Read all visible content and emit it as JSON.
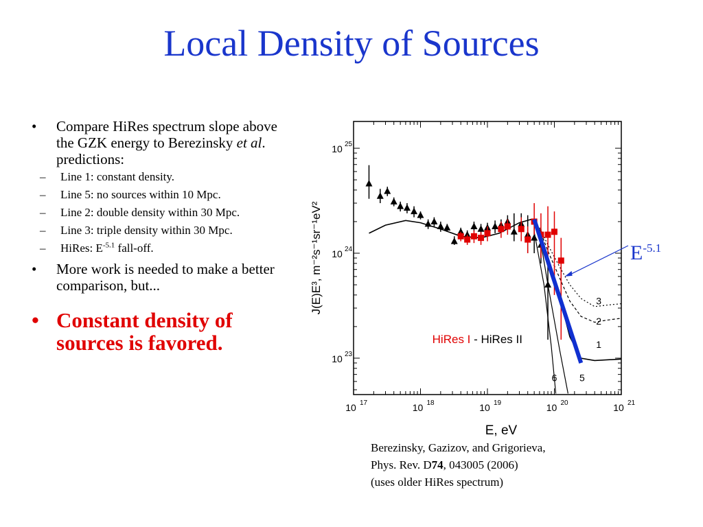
{
  "slide": {
    "title": "Local Density of Sources"
  },
  "bullets": {
    "b1_text": "Compare HiRes spectrum slope above the GZK energy to Berezinsky ",
    "b1_italic": "et al",
    "b1_tail": ". predictions:",
    "subs": [
      "Line 1:  constant density.",
      "Line 5:  no sources within 10 Mpc.",
      "Line 2:  double density within 30 Mpc.",
      "Line 3:  triple density   within 30 Mpc."
    ],
    "sub5_prefix": "HiRes:  E",
    "sub5_exp": "-5.1",
    "sub5_suffix": " fall-off.",
    "b2": "More work is needed to make a better comparison,  but...",
    "b3": "Constant density of sources is favored.",
    "bullet_glyph": "•",
    "dash_glyph": "–"
  },
  "annotation": {
    "base": "E",
    "exp": "-5.1"
  },
  "caption": {
    "line1": "Berezinsky, Gazizov, and Grigorieva,",
    "line2_pre": "Phys. Rev. D",
    "line2_bold": "74",
    "line2_post": ", 043005 (2006)",
    "line3": "(uses older HiRes spectrum)"
  },
  "chart_data": {
    "type": "scatter",
    "xlabel": "E, eV",
    "ylabel": "J(E)E³, m⁻²s⁻¹sr⁻¹eV²",
    "xscale": "log",
    "yscale": "log",
    "xlim": [
      1e+17,
      1e+21
    ],
    "ylim": [
      4.5e+22,
      1.8e+25
    ],
    "x_ticks": [
      {
        "base": "10",
        "exp": "17",
        "value": 1e+17
      },
      {
        "base": "10",
        "exp": "18",
        "value": 1e+18
      },
      {
        "base": "10",
        "exp": "19",
        "value": 1e+19
      },
      {
        "base": "10",
        "exp": "20",
        "value": 1e+20
      },
      {
        "base": "10",
        "exp": "21",
        "value": 1e+21
      }
    ],
    "y_ticks": [
      {
        "base": "10",
        "exp": "25",
        "value": 1e+25
      },
      {
        "base": "10",
        "exp": "24",
        "value": 1e+24
      },
      {
        "base": "10",
        "exp": "23",
        "value": 1e+23
      }
    ],
    "legend": {
      "series1": "HiRes I",
      "separator": " - ",
      "series2": "HiRes II",
      "placement": "lower-center"
    },
    "colors": {
      "hires1": "#e00000",
      "hires2": "#000000",
      "e51_line": "#1030d0",
      "annotation": "#1a36cc"
    },
    "series": [
      {
        "name": "HiRes II",
        "points": [
          {
            "x": 1.7e+17,
            "y": 4.6e+24,
            "lo": 3.3e+24,
            "hi": 6.9e+24
          },
          {
            "x": 2.5e+17,
            "y": 3.5e+24,
            "lo": 3e+24,
            "hi": 4.1e+24
          },
          {
            "x": 3.2e+17,
            "y": 3.9e+24,
            "lo": 3.5e+24,
            "hi": 4.3e+24
          },
          {
            "x": 4e+17,
            "y": 3.1e+24,
            "lo": 2.8e+24,
            "hi": 3.4e+24
          },
          {
            "x": 5e+17,
            "y": 2.8e+24,
            "lo": 2.5e+24,
            "hi": 3.1e+24
          },
          {
            "x": 6.3e+17,
            "y": 2.7e+24,
            "lo": 2.4e+24,
            "hi": 3e+24
          },
          {
            "x": 8e+17,
            "y": 2.5e+24,
            "lo": 2.2e+24,
            "hi": 2.8e+24
          },
          {
            "x": 1e+18,
            "y": 2.3e+24,
            "lo": 2.1e+24,
            "hi": 2.5e+24
          },
          {
            "x": 1.3e+18,
            "y": 1.9e+24,
            "lo": 1.7e+24,
            "hi": 2.1e+24
          },
          {
            "x": 1.6e+18,
            "y": 2e+24,
            "lo": 1.8e+24,
            "hi": 2.2e+24
          },
          {
            "x": 2e+18,
            "y": 1.8e+24,
            "lo": 1.6e+24,
            "hi": 2e+24
          },
          {
            "x": 2.5e+18,
            "y": 1.75e+24,
            "lo": 1.6e+24,
            "hi": 1.9e+24
          },
          {
            "x": 3.2e+18,
            "y": 1.3e+24,
            "lo": 1.2e+24,
            "hi": 1.45e+24
          },
          {
            "x": 4e+18,
            "y": 1.6e+24,
            "lo": 1.45e+24,
            "hi": 1.75e+24
          },
          {
            "x": 5e+18,
            "y": 1.5e+24,
            "lo": 1.35e+24,
            "hi": 1.65e+24
          },
          {
            "x": 6.3e+18,
            "y": 1.8e+24,
            "lo": 1.6e+24,
            "hi": 2e+24
          },
          {
            "x": 8e+18,
            "y": 1.7e+24,
            "lo": 1.5e+24,
            "hi": 1.9e+24
          },
          {
            "x": 1e+19,
            "y": 1.75e+24,
            "lo": 1.55e+24,
            "hi": 1.95e+24
          },
          {
            "x": 1.3e+19,
            "y": 1.8e+24,
            "lo": 1.55e+24,
            "hi": 2.05e+24
          },
          {
            "x": 1.6e+19,
            "y": 1.85e+24,
            "lo": 1.6e+24,
            "hi": 2.1e+24
          },
          {
            "x": 2e+19,
            "y": 2e+24,
            "lo": 1.7e+24,
            "hi": 2.3e+24
          },
          {
            "x": 2.5e+19,
            "y": 1.6e+24,
            "lo": 1.3e+24,
            "hi": 2.4e+24
          },
          {
            "x": 3.2e+19,
            "y": 1.9e+24,
            "lo": 1.5e+24,
            "hi": 2.4e+24
          },
          {
            "x": 4e+19,
            "y": 1.5e+24,
            "lo": 1e+24,
            "hi": 2.3e+24
          },
          {
            "x": 5e+19,
            "y": 1.4e+24,
            "lo": 1e+24,
            "hi": 2e+24
          },
          {
            "x": 6.3e+19,
            "y": 1.2e+24,
            "lo": 8e+23,
            "hi": 1.7e+24
          },
          {
            "x": 8e+19,
            "y": 5e+23,
            "lo": 1.5e+23,
            "hi": 9e+23
          }
        ]
      },
      {
        "name": "HiRes I",
        "points": [
          {
            "x": 4e+18,
            "y": 1.45e+24,
            "lo": 1.3e+24,
            "hi": 1.6e+24
          },
          {
            "x": 5e+18,
            "y": 1.35e+24,
            "lo": 1.2e+24,
            "hi": 1.5e+24
          },
          {
            "x": 6.3e+18,
            "y": 1.45e+24,
            "lo": 1.25e+24,
            "hi": 1.65e+24
          },
          {
            "x": 8e+18,
            "y": 1.4e+24,
            "lo": 1.2e+24,
            "hi": 1.6e+24
          },
          {
            "x": 1e+19,
            "y": 1.55e+24,
            "lo": 1.3e+24,
            "hi": 1.8e+24
          },
          {
            "x": 1.6e+19,
            "y": 1.7e+24,
            "lo": 1.4e+24,
            "hi": 2e+24
          },
          {
            "x": 2e+19,
            "y": 1.8e+24,
            "lo": 1.5e+24,
            "hi": 2.1e+24
          },
          {
            "x": 3.2e+19,
            "y": 1.7e+24,
            "lo": 1.3e+24,
            "hi": 2.2e+24
          },
          {
            "x": 4e+19,
            "y": 1.35e+24,
            "lo": 1e+24,
            "hi": 1.8e+24
          },
          {
            "x": 5e+19,
            "y": 2e+24,
            "lo": 1.5e+24,
            "hi": 3e+24
          },
          {
            "x": 6.3e+19,
            "y": 1.5e+24,
            "lo": 9e+23,
            "hi": 2.4e+24
          },
          {
            "x": 8e+19,
            "y": 1.5e+24,
            "lo": 8e+23,
            "hi": 2.8e+24
          },
          {
            "x": 1e+20,
            "y": 1.6e+24,
            "lo": 4e+23,
            "hi": 2.5e+24
          },
          {
            "x": 1.26e+20,
            "y": 8.5e+23,
            "lo": 1.5e+23,
            "hi": 1.4e+24
          }
        ]
      }
    ],
    "model_curves": [
      {
        "label": "1",
        "points": [
          [
            1.7e+17,
            1.55e+24
          ],
          [
            3e+17,
            1.85e+24
          ],
          [
            6e+17,
            2.05e+24
          ],
          [
            1e+18,
            1.95e+24
          ],
          [
            2e+18,
            1.7e+24
          ],
          [
            4e+18,
            1.45e+24
          ],
          [
            8e+18,
            1.4e+24
          ],
          [
            1.5e+19,
            1.55e+24
          ],
          [
            3e+19,
            1.95e+24
          ],
          [
            4.5e+19,
            2.1e+24
          ],
          [
            6e+19,
            1.6e+24
          ],
          [
            8e+19,
            8.5e+23
          ],
          [
            1.2e+20,
            3.8e+23
          ],
          [
            1.7e+20,
            1.6e+23
          ],
          [
            2.5e+20,
            1e+23
          ],
          [
            4e+20,
            9.5e+22
          ],
          [
            1e+21,
            9.8e+22
          ]
        ]
      },
      {
        "label": "2",
        "points": [
          [
            6e+19,
            1.7e+24
          ],
          [
            8e+19,
            1.05e+24
          ],
          [
            1.2e+20,
            5.8e+23
          ],
          [
            1.7e+20,
            3.5e+23
          ],
          [
            2.5e+20,
            2.5e+23
          ],
          [
            4e+20,
            2.2e+23
          ],
          [
            6e+20,
            2.3e+23
          ],
          [
            1e+21,
            2.4e+23
          ]
        ]
      },
      {
        "label": "3",
        "points": [
          [
            6e+19,
            1.75e+24
          ],
          [
            8e+19,
            1.2e+24
          ],
          [
            1.2e+20,
            7.4e+23
          ],
          [
            1.7e+20,
            5e+23
          ],
          [
            2.5e+20,
            3.7e+23
          ],
          [
            4e+20,
            3.1e+23
          ],
          [
            6e+20,
            3.2e+23
          ],
          [
            1e+21,
            3.3e+23
          ]
        ]
      },
      {
        "label": "5",
        "points": [
          [
            6e+19,
            1.5e+24
          ],
          [
            8e+19,
            5e+23
          ],
          [
            1.2e+20,
            1.2e+23
          ],
          [
            1.6e+20,
            4.6e+22
          ]
        ]
      },
      {
        "label": "6",
        "points": [
          [
            5e+19,
            1.6e+24
          ],
          [
            7e+19,
            5e+23
          ],
          [
            9e+19,
            1.3e+23
          ],
          [
            1.05e+20,
            4.6e+22
          ]
        ]
      }
    ],
    "e51_fit": [
      [
        5e+19,
        2.1e+24
      ],
      [
        2.5e+20,
        9e+22
      ]
    ]
  }
}
